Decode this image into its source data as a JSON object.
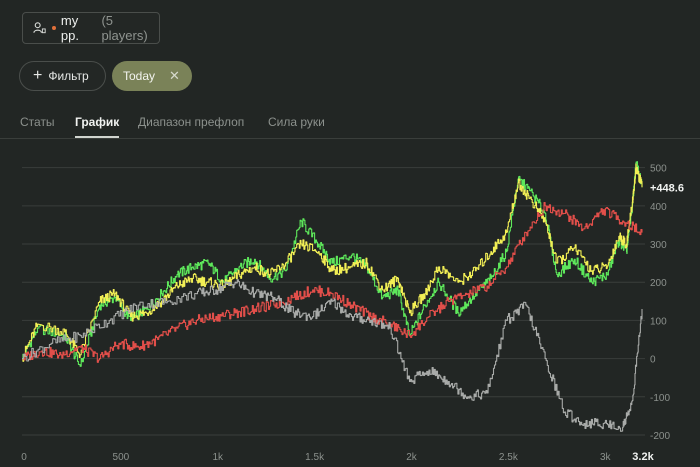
{
  "player_select": {
    "name": "my pp.",
    "count": "(5 players)"
  },
  "filters": {
    "add_label": "Фильтр",
    "chip_label": "Today"
  },
  "tabs": [
    "Статы",
    "График",
    "Диапазон префлоп",
    "Сила руки"
  ],
  "active_tab": "График",
  "colors": {
    "accent_chip": "#7a8258",
    "green": "#5ee85b",
    "yellow": "#f2ef55",
    "red": "#e24f4a",
    "gray": "#a8aaa8"
  },
  "chart_data": {
    "type": "line",
    "xlim": [
      0,
      3200
    ],
    "ylim": [
      -200,
      520
    ],
    "x_ticks": [
      "0",
      "500",
      "1k",
      "1.5k",
      "2k",
      "2.5k",
      "3k"
    ],
    "x_tick_values": [
      0,
      500,
      1000,
      1500,
      2000,
      2500,
      3000
    ],
    "x_end_label": "3.2k",
    "y_ticks": [
      "500",
      "400",
      "300",
      "200",
      "100",
      "0",
      "-100",
      "-200"
    ],
    "y_tick_values": [
      500,
      400,
      300,
      200,
      100,
      0,
      -100,
      -200
    ],
    "final_value_label": "+448.6",
    "series": [
      {
        "color": "#5ee85b",
        "x": [
          0,
          80,
          220,
          300,
          400,
          480,
          560,
          640,
          720,
          800,
          880,
          960,
          1040,
          1120,
          1200,
          1280,
          1360,
          1440,
          1530,
          1600,
          1700,
          1780,
          1860,
          1940,
          2000,
          2080,
          2150,
          2250,
          2340,
          2420,
          2500,
          2560,
          2620,
          2700,
          2760,
          2850,
          2940,
          3020,
          3080,
          3120,
          3150,
          3170,
          3200
        ],
        "y": [
          0,
          80,
          60,
          -20,
          140,
          160,
          100,
          130,
          170,
          220,
          240,
          250,
          200,
          240,
          260,
          210,
          230,
          360,
          300,
          250,
          270,
          240,
          160,
          180,
          60,
          140,
          200,
          120,
          170,
          210,
          280,
          470,
          440,
          380,
          220,
          260,
          200,
          220,
          310,
          280,
          400,
          515,
          448.6
        ]
      },
      {
        "color": "#f2ef55",
        "x": [
          0,
          80,
          220,
          300,
          400,
          480,
          560,
          640,
          720,
          800,
          880,
          960,
          1040,
          1120,
          1200,
          1280,
          1360,
          1440,
          1530,
          1600,
          1700,
          1780,
          1860,
          1940,
          2000,
          2080,
          2150,
          2250,
          2340,
          2420,
          2500,
          2560,
          2620,
          2700,
          2760,
          2850,
          2940,
          3020,
          3080,
          3120,
          3150,
          3170,
          3200
        ],
        "y": [
          0,
          90,
          70,
          10,
          150,
          170,
          110,
          120,
          150,
          190,
          210,
          200,
          190,
          220,
          240,
          220,
          250,
          300,
          280,
          230,
          240,
          250,
          180,
          210,
          120,
          170,
          240,
          200,
          230,
          280,
          330,
          460,
          420,
          360,
          250,
          290,
          230,
          240,
          320,
          300,
          410,
          500,
          448.6
        ]
      },
      {
        "color": "#e24f4a",
        "x": [
          0,
          100,
          200,
          300,
          400,
          500,
          600,
          700,
          800,
          900,
          1000,
          1100,
          1200,
          1300,
          1400,
          1500,
          1600,
          1700,
          1800,
          1900,
          2000,
          2100,
          2200,
          2300,
          2400,
          2500,
          2600,
          2700,
          2800,
          2900,
          3000,
          3100,
          3200
        ],
        "y": [
          0,
          20,
          10,
          30,
          0,
          40,
          30,
          50,
          80,
          100,
          110,
          120,
          130,
          140,
          160,
          180,
          170,
          140,
          110,
          90,
          60,
          110,
          150,
          170,
          190,
          240,
          330,
          400,
          380,
          340,
          390,
          360,
          330
        ]
      },
      {
        "color": "#a8aaa8",
        "x": [
          0,
          150,
          300,
          450,
          600,
          750,
          900,
          1000,
          1100,
          1200,
          1300,
          1400,
          1500,
          1600,
          1700,
          1800,
          1900,
          2000,
          2100,
          2200,
          2300,
          2400,
          2500,
          2600,
          2700,
          2800,
          2900,
          3000,
          3100,
          3150,
          3200
        ],
        "y": [
          0,
          40,
          60,
          100,
          140,
          150,
          170,
          180,
          200,
          170,
          160,
          120,
          110,
          150,
          110,
          100,
          80,
          -60,
          -30,
          -60,
          -100,
          -90,
          100,
          140,
          0,
          -140,
          -170,
          -170,
          -180,
          -110,
          130
        ]
      }
    ]
  }
}
